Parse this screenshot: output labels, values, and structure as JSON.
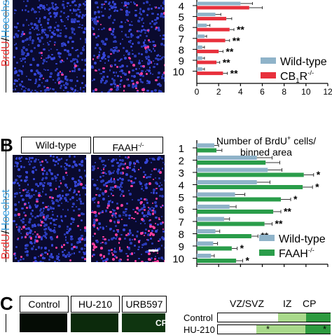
{
  "panelA": {
    "ylabel_brdu": "BrdU",
    "ylabel_sep": "/",
    "ylabel_hoechst": "Hoechst",
    "chart_data": {
      "type": "bar",
      "orientation": "horizontal",
      "categories": [
        "4",
        "5",
        "6",
        "7",
        "8",
        "9",
        "10"
      ],
      "series": [
        {
          "name": "Wild-type",
          "color": "#8fb3c9",
          "values": [
            4.0,
            1.7,
            0.9,
            0.7,
            0.5,
            0.5,
            0.5
          ],
          "errors": [
            1.1,
            0.5,
            0.3,
            0.2,
            0.2,
            0.2,
            0.2
          ]
        },
        {
          "name": "CB1R-/-",
          "color": "#e8303c",
          "values": [
            4.8,
            2.7,
            3.0,
            2.6,
            2.0,
            1.8,
            2.4
          ],
          "errors": [
            1.2,
            0.5,
            0.4,
            0.4,
            0.4,
            0.3,
            0.4
          ]
        }
      ],
      "significance": [
        "",
        "",
        "**",
        "**",
        "**",
        "**",
        "**"
      ],
      "xlim": [
        0,
        12
      ],
      "xticks": [
        "0",
        "2",
        "4",
        "6",
        "8",
        "10",
        "12"
      ],
      "legend": [
        {
          "label": "Wild-type",
          "sup": "",
          "sub": "",
          "color": "#8fb3c9"
        },
        {
          "label": "CB",
          "sub": "1",
          "rest": "R",
          "sup": "-/-",
          "color": "#e8303c"
        }
      ],
      "legend_position": "right"
    }
  },
  "panelB": {
    "letter": "B",
    "tab_wildtype": "Wild-type",
    "tab_faah": "FAAH",
    "tab_faah_sup": "-/-",
    "ylabel_brdu": "BrdU",
    "ylabel_sep": "/",
    "ylabel_hoechst": "Hoechst",
    "chart_data": {
      "type": "bar",
      "orientation": "horizontal",
      "title_line1": "Number of BrdU",
      "title_sup": "+",
      "title_line1_rest": " cells/",
      "title_line2": "binned area",
      "categories": [
        "1",
        "2",
        "3",
        "4",
        "5",
        "6",
        "7",
        "8",
        "9",
        "10"
      ],
      "series": [
        {
          "name": "Wild-type",
          "color": "#8fb3c9",
          "values": [
            1.6,
            5.5,
            6.5,
            5.5,
            3.5,
            3.0,
            2.5,
            1.7,
            1.5,
            1.3
          ],
          "errors": [
            0.4,
            1.4,
            1.3,
            1.2,
            0.9,
            0.6,
            0.5,
            0.4,
            0.4,
            0.3
          ]
        },
        {
          "name": "FAAH-/-",
          "color": "#2a9d4a",
          "values": [
            1.8,
            6.3,
            9.8,
            9.7,
            7.7,
            7.0,
            6.2,
            5.0,
            3.2,
            3.6
          ],
          "errors": [
            0.5,
            1.3,
            0.9,
            0.9,
            0.9,
            0.7,
            0.7,
            0.6,
            0.5,
            0.6
          ]
        }
      ],
      "significance": [
        "",
        "",
        "*",
        "*",
        "*",
        "**",
        "**",
        "**",
        "*",
        "*"
      ],
      "xlim": [
        0,
        12
      ],
      "xticks": [
        "0",
        "2",
        "4",
        "6",
        "8",
        "10",
        "12"
      ],
      "legend": [
        {
          "label": "Wild-type",
          "sup": "",
          "color": "#8fb3c9"
        },
        {
          "label": "FAAH",
          "sup": "-/-",
          "color": "#2a9d4a"
        }
      ],
      "legend_position": "bottom-right"
    }
  },
  "panelC": {
    "letter": "C",
    "tab_control": "Control",
    "tab_hu210": "HU-210",
    "tab_urb597": "URB597",
    "cp_label": "CP",
    "col_vzsvz": "VZ/SVZ",
    "col_iz": "IZ",
    "col_cp": "CP",
    "row_control": "Control",
    "row_hu210": "HU-210",
    "row_hu210_mark": "*",
    "row_hu210_end": "*"
  }
}
